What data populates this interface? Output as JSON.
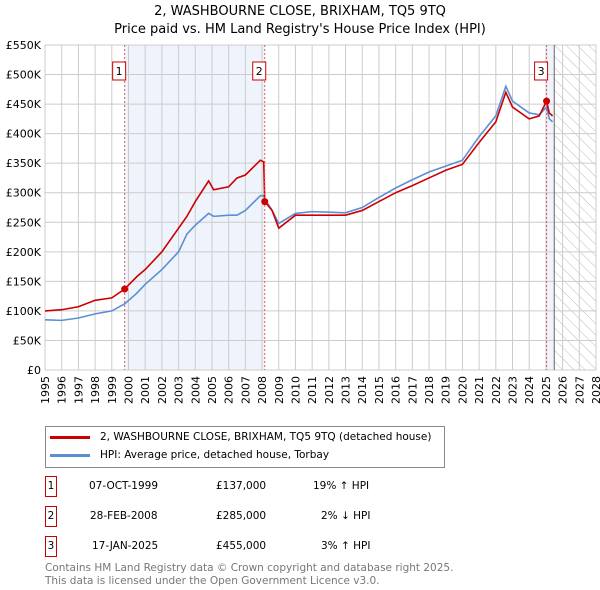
{
  "title": "2, WASHBOURNE CLOSE, BRIXHAM, TQ5 9TQ",
  "subtitle": "Price paid vs. HM Land Registry's House Price Index (HPI)",
  "chart_data": {
    "type": "line",
    "ylim": [
      0,
      550000
    ],
    "xlim": [
      1995,
      2028
    ],
    "y_ticks": [
      "£0",
      "£50K",
      "£100K",
      "£150K",
      "£200K",
      "£250K",
      "£300K",
      "£350K",
      "£400K",
      "£450K",
      "£500K",
      "£550K"
    ],
    "x_ticks": [
      "1995",
      "1996",
      "1997",
      "1998",
      "1999",
      "2000",
      "2001",
      "2002",
      "2003",
      "2004",
      "2005",
      "2006",
      "2007",
      "2008",
      "2009",
      "2010",
      "2011",
      "2012",
      "2013",
      "2014",
      "2015",
      "2016",
      "2017",
      "2018",
      "2019",
      "2020",
      "2021",
      "2022",
      "2023",
      "2024",
      "2025",
      "2026",
      "2027",
      "2028"
    ],
    "series": [
      {
        "name": "2, WASHBOURNE CLOSE, BRIXHAM, TQ5 9TQ (detached house)",
        "color": "#cc0000",
        "x": [
          1995,
          1996,
          1997,
          1998,
          1999,
          1999.77,
          2000.5,
          2001,
          2002,
          2003,
          2003.5,
          2004,
          2004.8,
          2005.1,
          2006,
          2006.5,
          2007,
          2007.9,
          2008.1,
          2008.16,
          2008.6,
          2009,
          2010,
          2011,
          2012,
          2013,
          2014,
          2015,
          2016,
          2017,
          2018,
          2019,
          2020,
          2021,
          2022,
          2022.6,
          2023,
          2024,
          2024.6,
          2025.04,
          2025.2,
          2025.4
        ],
        "y": [
          100000,
          102000,
          107000,
          118000,
          122000,
          137000,
          158000,
          170000,
          200000,
          240000,
          260000,
          285000,
          320000,
          305000,
          310000,
          325000,
          330000,
          355000,
          352000,
          285000,
          270000,
          240000,
          262000,
          262000,
          262000,
          262000,
          270000,
          285000,
          300000,
          312000,
          325000,
          338000,
          348000,
          385000,
          420000,
          470000,
          445000,
          425000,
          430000,
          455000,
          435000,
          430000
        ]
      },
      {
        "name": "HPI: Average price, detached house, Torbay",
        "color": "#5b8fd4",
        "x": [
          1995,
          1996,
          1997,
          1998,
          1999,
          1999.77,
          2000.5,
          2001,
          2002,
          2003,
          2003.5,
          2004,
          2004.8,
          2005.1,
          2006,
          2006.5,
          2007,
          2007.9,
          2008.1,
          2008.16,
          2008.6,
          2009,
          2010,
          2011,
          2012,
          2013,
          2014,
          2015,
          2016,
          2017,
          2018,
          2019,
          2020,
          2021,
          2022,
          2022.6,
          2023,
          2024,
          2024.6,
          2025.04,
          2025.2,
          2025.4
        ],
        "y": [
          85000,
          84000,
          88000,
          95000,
          100000,
          112000,
          130000,
          145000,
          170000,
          200000,
          230000,
          245000,
          265000,
          260000,
          262000,
          262000,
          270000,
          295000,
          295000,
          290000,
          270000,
          248000,
          265000,
          268000,
          267000,
          266000,
          275000,
          292000,
          308000,
          322000,
          335000,
          345000,
          355000,
          395000,
          430000,
          480000,
          455000,
          435000,
          432000,
          445000,
          425000,
          420000
        ]
      }
    ],
    "sales": [
      {
        "n": "1",
        "x": 1999.77,
        "y": 137000,
        "date": "07-OCT-1999",
        "price": "£137,000",
        "hpi": "19% ↑ HPI"
      },
      {
        "n": "2",
        "x": 2008.16,
        "y": 285000,
        "date": "28-FEB-2008",
        "price": "£285,000",
        "hpi": "2% ↓ HPI"
      },
      {
        "n": "3",
        "x": 2025.04,
        "y": 455000,
        "date": "17-JAN-2025",
        "price": "£455,000",
        "hpi": "3% ↑ HPI"
      }
    ],
    "forecast_start": 2025.5
  },
  "footer": [
    "Contains HM Land Registry data © Crown copyright and database right 2025.",
    "This data is licensed under the Open Government Licence v3.0."
  ]
}
